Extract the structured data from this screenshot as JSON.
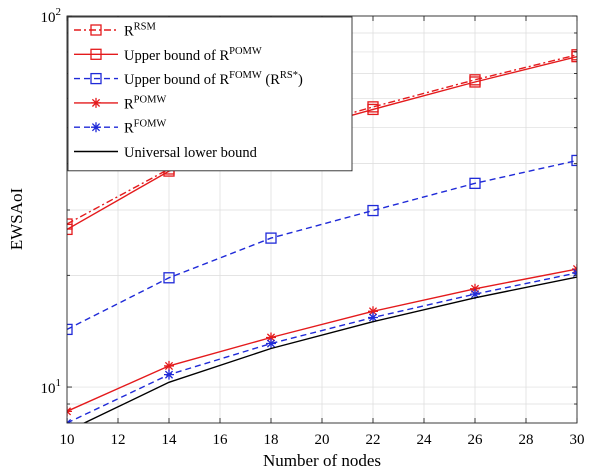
{
  "chart_data": {
    "type": "line",
    "title": "",
    "xlabel": "Number of nodes",
    "ylabel": "EWSAoI",
    "x_scale": "linear",
    "y_scale": "log",
    "xlim": [
      10,
      30
    ],
    "ylim": [
      8,
      100
    ],
    "x_ticks": [
      10,
      12,
      14,
      16,
      18,
      20,
      22,
      24,
      26,
      28,
      30
    ],
    "x_tick_labels": [
      "10",
      "12",
      "14",
      "16",
      "18",
      "20",
      "22",
      "24",
      "26",
      "28",
      "30"
    ],
    "y_major_ticks": [
      10,
      100
    ],
    "y_minor_ticks": [
      20,
      30,
      40,
      50,
      60,
      70,
      80,
      90
    ],
    "y_tick_labels": [
      {
        "value": 10,
        "base": "10",
        "exp": "1"
      },
      {
        "value": 100,
        "base": "10",
        "exp": "2"
      }
    ],
    "grid": true,
    "legend_position": "top-left",
    "x": [
      10,
      14,
      18,
      22,
      26,
      30
    ],
    "series": [
      {
        "name": "R",
        "name_sup": "RSM",
        "name_suffix": "",
        "name_suffix_sup": "",
        "name_tail": "",
        "color": "#e41a1c",
        "dash": "dashdot",
        "marker": "square",
        "values": [
          27.5,
          38.7,
          47.5,
          56.9,
          67.3,
          78.6
        ]
      },
      {
        "name": "Upper bound of R",
        "name_sup": "POMW",
        "name_suffix": "",
        "name_suffix_sup": "",
        "name_tail": "",
        "color": "#e41a1c",
        "dash": "solid",
        "marker": "square",
        "values": [
          26.6,
          38.2,
          47.0,
          56.0,
          66.4,
          77.7
        ]
      },
      {
        "name": "Upper bound of R",
        "name_sup": "FOMW",
        "name_suffix": " (R",
        "name_suffix_sup": "RS*",
        "name_tail": ")",
        "color": "#1f2ad8",
        "dash": "dashed",
        "marker": "square",
        "values": [
          14.3,
          19.7,
          25.2,
          29.9,
          35.4,
          40.8
        ]
      },
      {
        "name": "R",
        "name_sup": "POMW",
        "name_suffix": "",
        "name_suffix_sup": "",
        "name_tail": "",
        "color": "#e41a1c",
        "dash": "solid",
        "marker": "asterisk",
        "values": [
          8.6,
          11.4,
          13.6,
          16.0,
          18.4,
          20.8
        ]
      },
      {
        "name": "R",
        "name_sup": "FOMW",
        "name_suffix": "",
        "name_suffix_sup": "",
        "name_tail": "",
        "color": "#1f2ad8",
        "dash": "dashed",
        "marker": "asterisk",
        "values": [
          8.0,
          10.8,
          13.1,
          15.4,
          17.8,
          20.3
        ]
      },
      {
        "name": "Universal lower bound",
        "name_sup": "",
        "name_suffix": "",
        "name_suffix_sup": "",
        "name_tail": "",
        "color": "#000000",
        "dash": "solid",
        "marker": "none",
        "values": [
          7.6,
          10.3,
          12.7,
          15.0,
          17.4,
          19.8
        ]
      }
    ]
  }
}
